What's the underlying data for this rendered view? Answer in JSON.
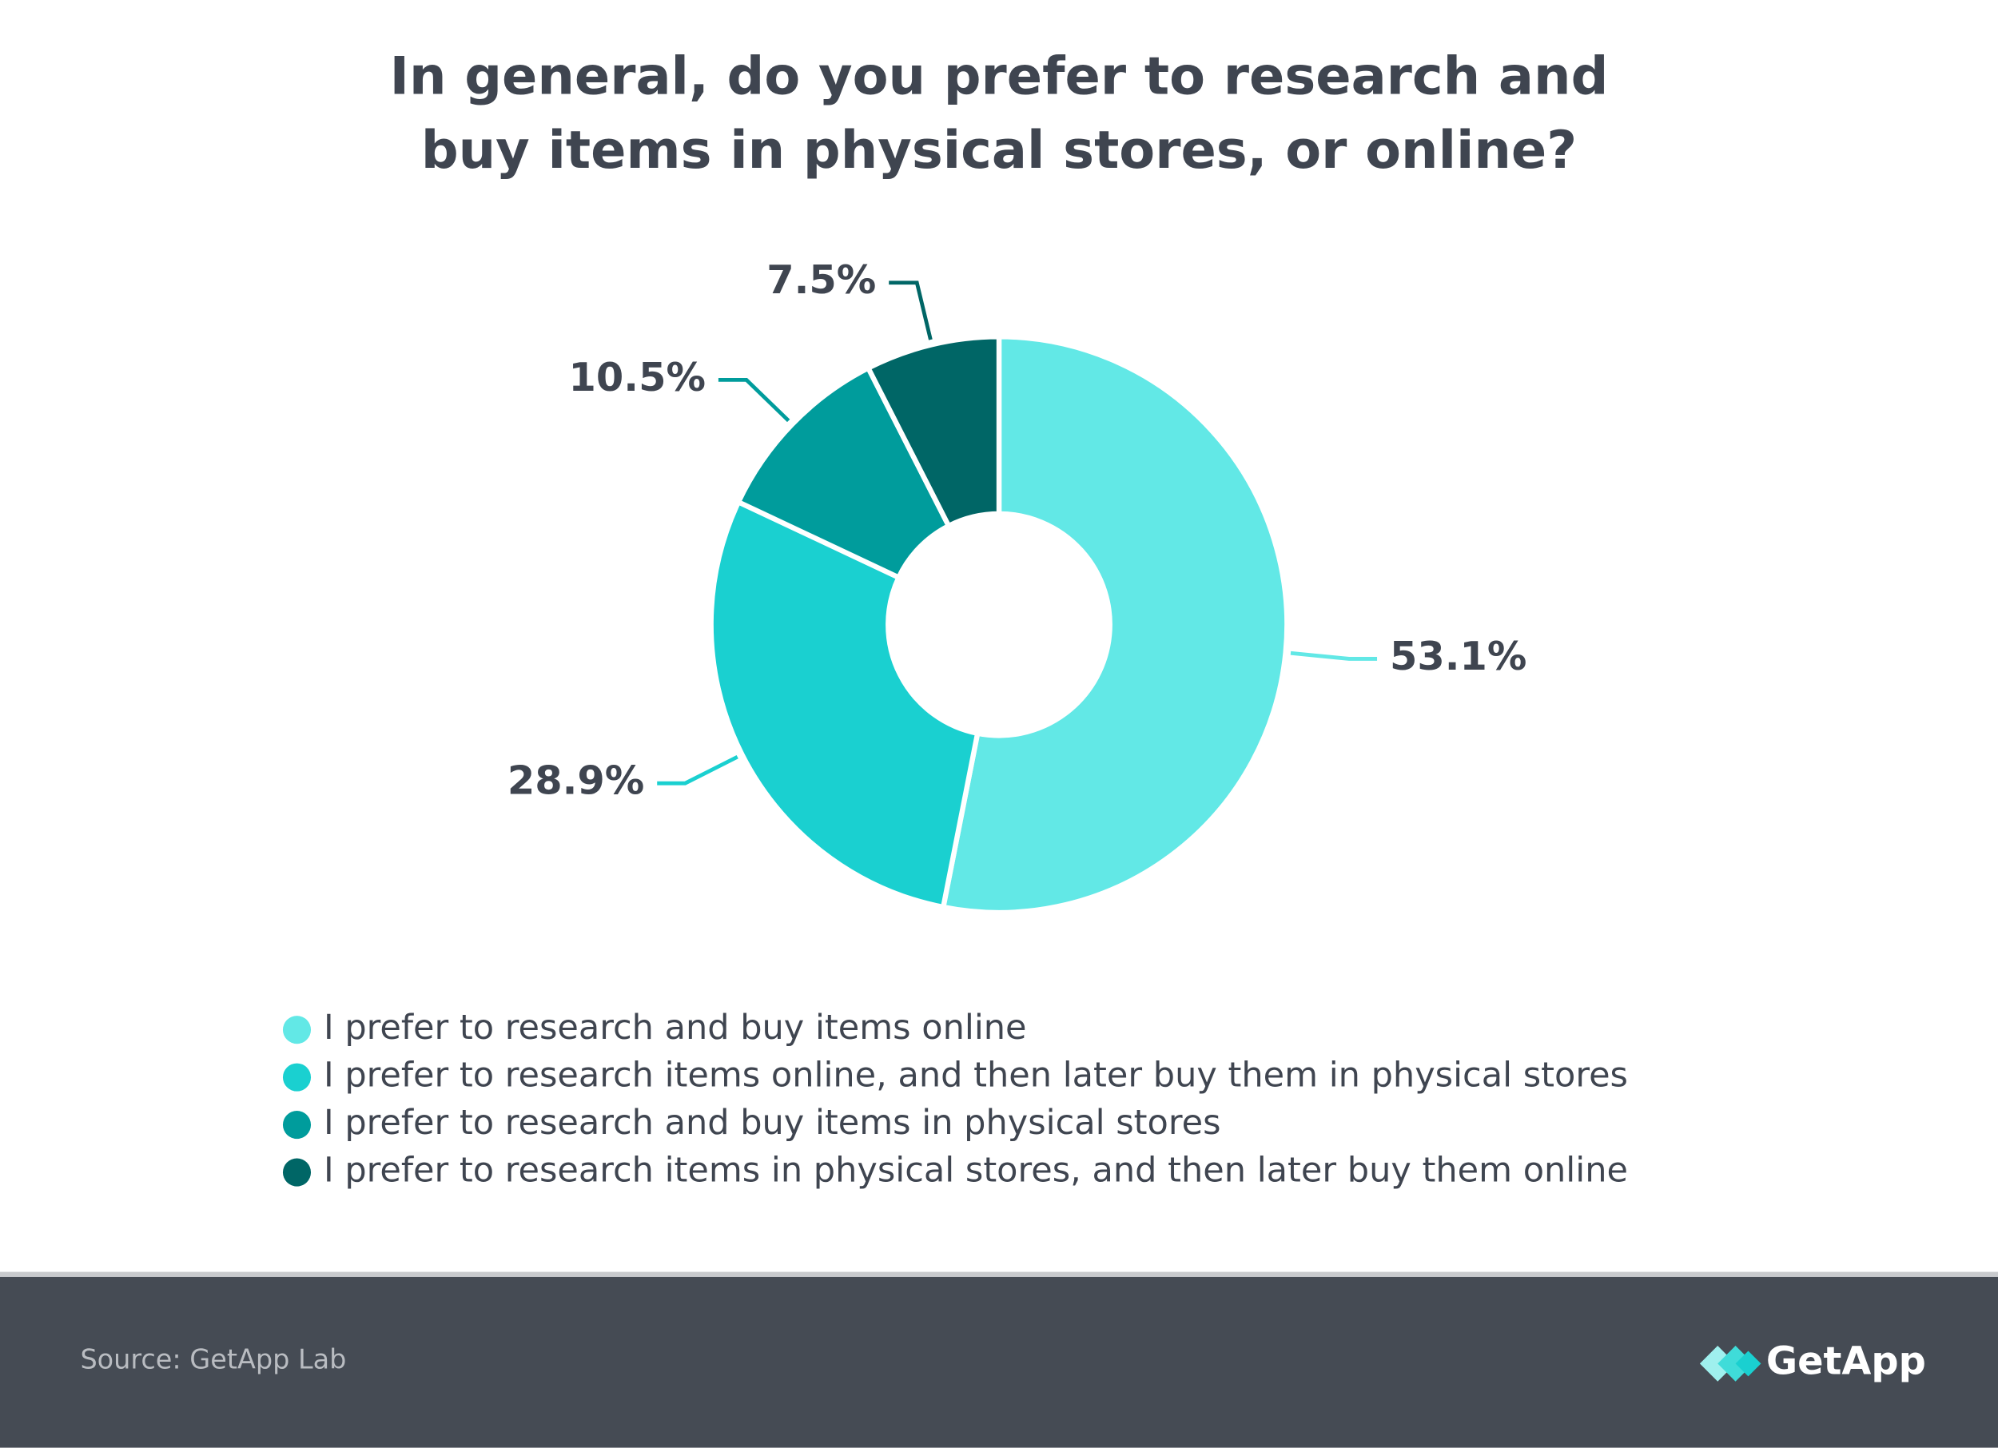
{
  "chart_data": {
    "type": "pie",
    "title": [
      "In general, do you prefer to research and",
      "buy items in physical stores, or online?"
    ],
    "categories": [
      "I prefer to research and buy items online",
      "I prefer to research items online, and then later buy them in physical stores",
      "I prefer to research and buy items in physical stores",
      "I prefer to research items in physical stores, and then later buy them online"
    ],
    "values": [
      53.1,
      28.9,
      10.5,
      7.5
    ],
    "value_labels": [
      "53.1%",
      "28.9%",
      "10.5%",
      "7.5%"
    ],
    "colors": [
      "#62e8e6",
      "#1ad0d0",
      "#009c9c",
      "#006666"
    ],
    "donut": true
  },
  "footer": {
    "source": "Source: GetApp Lab",
    "logo": "GetApp"
  }
}
